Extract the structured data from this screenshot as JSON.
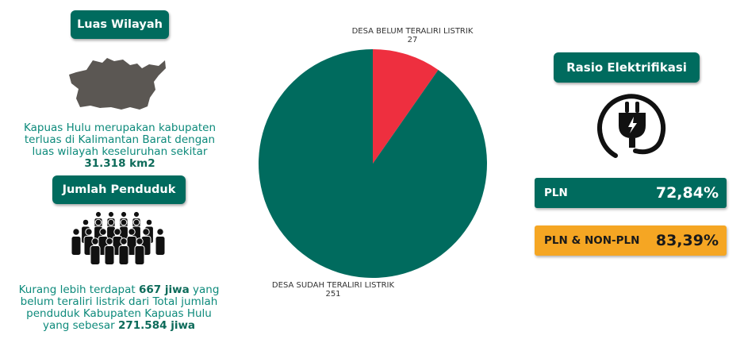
{
  "area": {
    "badge": "Luas Wilayah",
    "text_pre": "Kapuas Hulu merupakan kabupaten terluas di Kalimantan Barat dengan luas wilayah keseluruhan sekitar ",
    "text_bold": "31.318 km2",
    "map_icon": "regency-map-icon"
  },
  "population": {
    "badge": "Jumlah Penduduk",
    "text_pre": "Kurang lebih terdapat ",
    "bold1": "667 jiwa",
    "text_mid": " yang belum teraliri listrik dari Total jumlah penduduk Kabupaten Kapuas Hulu yang sebesar ",
    "bold2": "271.584 jiwa",
    "people_icon": "crowd-icon"
  },
  "chart_data": {
    "type": "pie",
    "slices": [
      {
        "label": "DESA BELUM TERALIRI LISTRIK",
        "value": 27,
        "value_label": "27",
        "color": "#ee2f3f"
      },
      {
        "label": "DESA SUDAH TERALIRI LISTRIK",
        "value": 251,
        "value_label": "251",
        "color": "#006b5e"
      }
    ]
  },
  "electrification": {
    "badge": "Rasio Elektrifikasi",
    "plug_icon": "power-plug-icon",
    "rows": [
      {
        "name": "PLN",
        "value": "72,84%",
        "bg": "#006b5e",
        "fg": "#ffffff"
      },
      {
        "name": "PLN & NON-PLN",
        "value": "83,39%",
        "bg": "#f5a623",
        "fg": "#1a1a1a"
      }
    ]
  }
}
